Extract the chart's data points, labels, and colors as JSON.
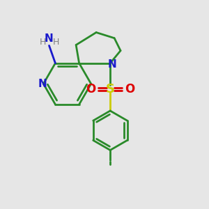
{
  "bg_color": "#e6e6e6",
  "bond_color": "#2a8a2a",
  "n_color": "#1a1acc",
  "o_color": "#dd0000",
  "s_color": "#cccc00",
  "h_color": "#808080",
  "line_width": 2.0,
  "figsize": [
    3.0,
    3.0
  ],
  "dpi": 100,
  "xlim": [
    0,
    10
  ],
  "ylim": [
    0,
    10
  ]
}
